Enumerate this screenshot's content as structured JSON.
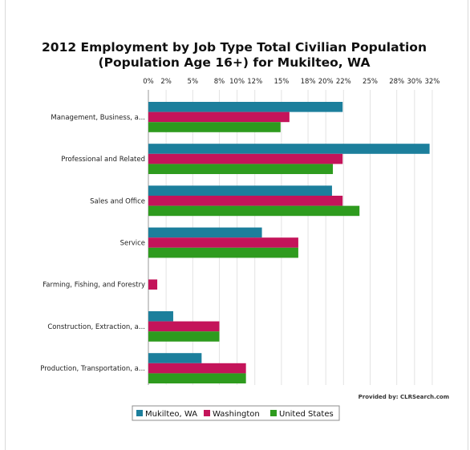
{
  "chart_data": {
    "type": "bar",
    "orientation": "horizontal",
    "title_lines": [
      "2012 Employment by Job Type Total Civilian Population",
      "(Population Age 16+) for Mukilteo, WA"
    ],
    "categories": [
      "Management, Business, a...",
      "Professional and Related",
      "Sales and Office",
      "Service",
      "Farming, Fishing, and Forestry",
      "Construction, Extraction, a...",
      "Production, Transportation, a..."
    ],
    "series": [
      {
        "name": "Mukilteo, WA",
        "color": "#1c7f9c",
        "values": [
          21.9,
          31.7,
          20.7,
          12.8,
          0.0,
          2.8,
          6.0
        ]
      },
      {
        "name": "Washington",
        "color": "#c4145a",
        "values": [
          15.9,
          21.9,
          21.9,
          16.9,
          1.0,
          8.0,
          11.0
        ]
      },
      {
        "name": "United States",
        "color": "#2e9b1e",
        "values": [
          14.9,
          20.8,
          23.8,
          16.9,
          0.0,
          8.0,
          11.0
        ]
      }
    ],
    "xlim": [
      0,
      32
    ],
    "x_ticks": [
      0,
      2,
      5,
      8,
      10,
      12,
      15,
      18,
      20,
      22,
      25,
      28,
      30,
      32
    ],
    "x_tick_labels": [
      "0%",
      "2%",
      "5%",
      "8%",
      "10%",
      "12%",
      "15%",
      "18%",
      "20%",
      "22%",
      "25%",
      "28%",
      "30%",
      "32%"
    ],
    "grid": true,
    "legend_position": "bottom-center",
    "credit": "Provided by: CLRSearch.com"
  }
}
